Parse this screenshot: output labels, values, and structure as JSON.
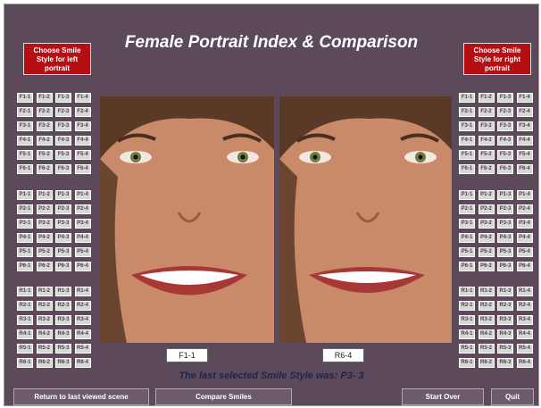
{
  "header": {
    "title": "Female Portrait Index & Comparison",
    "left_chooser": "Choose Smile Style for left portrait",
    "right_chooser": "Choose Smile Style for right portrait"
  },
  "left_grid": {
    "groups": [
      [
        [
          "F1-1",
          "F1-2",
          "F1-3",
          "F1-4"
        ],
        [
          "F2-1",
          "F2-2",
          "F2-3",
          "F2-4"
        ],
        [
          "F3-1",
          "F3-2",
          "F3-3",
          "F3-4"
        ],
        [
          "F4-1",
          "F4-2",
          "F4-3",
          "F4-4"
        ],
        [
          "F5-1",
          "F5-2",
          "F5-3",
          "F5-4"
        ],
        [
          "F6-1",
          "F6-2",
          "F6-3",
          "F6-4"
        ]
      ],
      [
        [
          "P1-1",
          "P1-2",
          "P1-3",
          "P1-4"
        ],
        [
          "P2-1",
          "P2-2",
          "P2-3",
          "P2-4"
        ],
        [
          "P3-1",
          "P3-2",
          "P3-3",
          "P3-4"
        ],
        [
          "P4-1",
          "P4-2",
          "P4-3",
          "P4-4"
        ],
        [
          "P5-1",
          "P5-2",
          "P5-3",
          "P5-4"
        ],
        [
          "P6-1",
          "P6-2",
          "P6-3",
          "P6-4"
        ]
      ],
      [
        [
          "R1-1",
          "R1-2",
          "R1-3",
          "R1-4"
        ],
        [
          "R2-1",
          "R2-2",
          "R2-3",
          "R2-4"
        ],
        [
          "R3-1",
          "R3-2",
          "R3-3",
          "R3-4"
        ],
        [
          "R4-1",
          "R4-2",
          "R4-3",
          "R4-4"
        ],
        [
          "R5-1",
          "R5-2",
          "R5-3",
          "R5-4"
        ],
        [
          "R6-1",
          "R6-2",
          "R6-3",
          "R6-4"
        ]
      ]
    ]
  },
  "right_grid": {
    "groups": [
      [
        [
          "F1-1",
          "F1-2",
          "F1-3",
          "F1-4"
        ],
        [
          "F2-1",
          "F2-2",
          "F2-3",
          "F2-4"
        ],
        [
          "F3-1",
          "F3-2",
          "F3-3",
          "F3-4"
        ],
        [
          "F4-1",
          "F4-2",
          "F4-3",
          "F4-4"
        ],
        [
          "F5-1",
          "F5-2",
          "F5-3",
          "F5-4"
        ],
        [
          "F6-1",
          "F6-2",
          "F6-3",
          "F6-4"
        ]
      ],
      [
        [
          "P1-1",
          "P1-2",
          "P1-3",
          "P1-4"
        ],
        [
          "P2-1",
          "P2-2",
          "P2-3",
          "P2-4"
        ],
        [
          "P3-1",
          "P3-2",
          "P3-3",
          "P3-4"
        ],
        [
          "P4-1",
          "P4-2",
          "P4-3",
          "P4-4"
        ],
        [
          "P5-1",
          "P5-2",
          "P5-3",
          "P5-4"
        ],
        [
          "P6-1",
          "P6-2",
          "P6-3",
          "P6-4"
        ]
      ],
      [
        [
          "R1-1",
          "R1-2",
          "R1-3",
          "R1-4"
        ],
        [
          "R2-1",
          "R2-2",
          "R2-3",
          "R2-4"
        ],
        [
          "R3-1",
          "R3-2",
          "R3-3",
          "R3-4"
        ],
        [
          "R4-1",
          "R4-2",
          "R4-3",
          "R4-4"
        ],
        [
          "R5-1",
          "R5-2",
          "R5-3",
          "R5-4"
        ],
        [
          "R6-1",
          "R6-2",
          "R6-3",
          "R6-4"
        ]
      ]
    ]
  },
  "portraits": {
    "left_label": "F1-1",
    "right_label": "R6-4"
  },
  "status": "The last selected Smile Style was: P3- 3",
  "buttons": {
    "back": "Return to last viewed scene",
    "compare": "Compare Smiles",
    "start_over": "Start Over",
    "quit": "Quit"
  }
}
